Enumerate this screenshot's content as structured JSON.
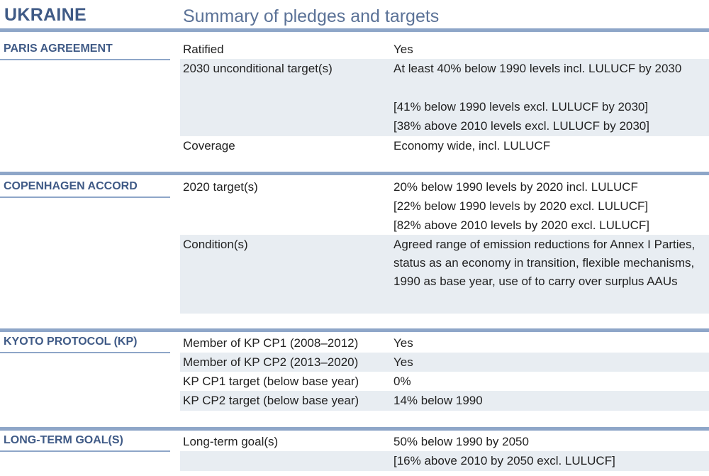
{
  "header": {
    "country": "UKRAINE",
    "subtitle": "Summary of pledges and targets"
  },
  "paris": {
    "title": "PARIS AGREEMENT",
    "rows": [
      {
        "label": "Ratified",
        "lines": [
          "Yes"
        ]
      },
      {
        "label": "2030 unconditional target(s)",
        "lines": [
          "At least 40% below 1990 levels incl. LULUCF by 2030",
          "[41% below 1990 levels excl. LULUCF by 2030]",
          "[38% above 2010 levels excl. LULUCF by 2030]"
        ]
      },
      {
        "label": "Coverage",
        "lines": [
          "Economy wide, incl. LULUCF"
        ]
      }
    ]
  },
  "copenhagen": {
    "title": "COPENHAGEN ACCORD",
    "rows": [
      {
        "label": "2020 target(s)",
        "lines": [
          "20% below 1990 levels by 2020 incl. LULUCF",
          "[22% below 1990 levels by 2020 excl. LULUCF]",
          "[82% above 2010 levels by 2020 excl. LULUCF]"
        ]
      },
      {
        "label": "Condition(s)",
        "text": "Agreed range of emission reductions for Annex I Parties, status as an economy in transition, flexible mechanisms, 1990 as base year, use of to carry over surplus AAUs"
      }
    ]
  },
  "kyoto": {
    "title": "KYOTO PROTOCOL (KP)",
    "rows": [
      {
        "label": "Member of KP CP1 (2008–2012)",
        "lines": [
          "Yes"
        ]
      },
      {
        "label": "Member of KP CP2 (2013–2020)",
        "lines": [
          "Yes"
        ]
      },
      {
        "label": "KP CP1 target (below base year)",
        "lines": [
          "0%"
        ]
      },
      {
        "label": "KP CP2 target (below base year)",
        "lines": [
          "14% below 1990"
        ]
      }
    ]
  },
  "longterm": {
    "title": "LONG-TERM GOAL(S)",
    "rows": [
      {
        "label": "Long-term goal(s)",
        "lines": [
          "50% below 1990 by 2050",
          "[16% above 2010 by 2050 excl. LULUCF]"
        ]
      }
    ]
  }
}
